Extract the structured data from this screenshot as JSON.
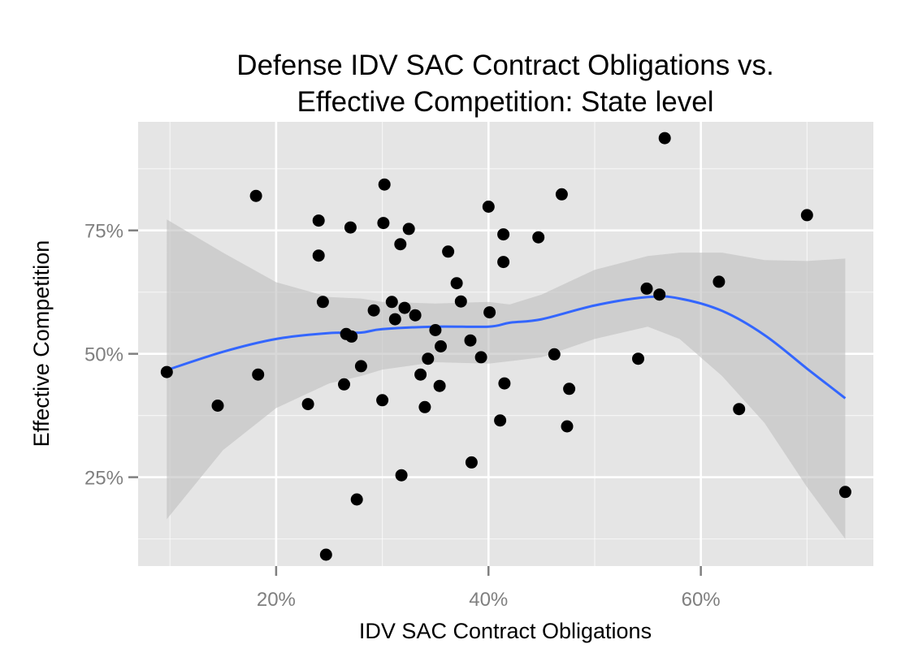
{
  "chart_data": {
    "type": "scatter",
    "title_lines": [
      "Defense IDV SAC Contract Obligations vs.",
      "Effective Competition: State level"
    ],
    "xlabel": "IDV SAC Contract Obligations",
    "ylabel": "Effective Competition",
    "xlim": [
      0.07,
      0.7625
    ],
    "ylim": [
      0.07,
      0.97
    ],
    "x_ticks": [
      {
        "value": 0.2,
        "label": "20%"
      },
      {
        "value": 0.4,
        "label": "40%"
      },
      {
        "value": 0.6,
        "label": "60%"
      }
    ],
    "x_minor": [
      0.1,
      0.3,
      0.5,
      0.7
    ],
    "y_ticks": [
      {
        "value": 0.25,
        "label": "25%"
      },
      {
        "value": 0.5,
        "label": "50%"
      },
      {
        "value": 0.75,
        "label": "75%"
      }
    ],
    "y_minor": [
      0.125,
      0.375,
      0.625,
      0.875
    ],
    "grid": true,
    "colors": {
      "panel": "#e5e5e5",
      "grid": "#ffffff",
      "points": "#000000",
      "smooth_line": "#3366ff",
      "ribbon": "#bebebe"
    },
    "points": [
      {
        "x": 0.097,
        "y": 0.463
      },
      {
        "x": 0.145,
        "y": 0.395
      },
      {
        "x": 0.181,
        "y": 0.82
      },
      {
        "x": 0.183,
        "y": 0.458
      },
      {
        "x": 0.23,
        "y": 0.398
      },
      {
        "x": 0.24,
        "y": 0.77
      },
      {
        "x": 0.24,
        "y": 0.699
      },
      {
        "x": 0.244,
        "y": 0.605
      },
      {
        "x": 0.247,
        "y": 0.093
      },
      {
        "x": 0.264,
        "y": 0.438
      },
      {
        "x": 0.266,
        "y": 0.54
      },
      {
        "x": 0.27,
        "y": 0.756
      },
      {
        "x": 0.271,
        "y": 0.535
      },
      {
        "x": 0.276,
        "y": 0.205
      },
      {
        "x": 0.28,
        "y": 0.475
      },
      {
        "x": 0.292,
        "y": 0.588
      },
      {
        "x": 0.3,
        "y": 0.406
      },
      {
        "x": 0.301,
        "y": 0.765
      },
      {
        "x": 0.302,
        "y": 0.843
      },
      {
        "x": 0.309,
        "y": 0.605
      },
      {
        "x": 0.312,
        "y": 0.57
      },
      {
        "x": 0.317,
        "y": 0.722
      },
      {
        "x": 0.318,
        "y": 0.254
      },
      {
        "x": 0.321,
        "y": 0.593
      },
      {
        "x": 0.325,
        "y": 0.753
      },
      {
        "x": 0.331,
        "y": 0.578
      },
      {
        "x": 0.336,
        "y": 0.458
      },
      {
        "x": 0.34,
        "y": 0.392
      },
      {
        "x": 0.343,
        "y": 0.49
      },
      {
        "x": 0.35,
        "y": 0.548
      },
      {
        "x": 0.354,
        "y": 0.435
      },
      {
        "x": 0.355,
        "y": 0.515
      },
      {
        "x": 0.362,
        "y": 0.707
      },
      {
        "x": 0.37,
        "y": 0.643
      },
      {
        "x": 0.374,
        "y": 0.606
      },
      {
        "x": 0.383,
        "y": 0.527
      },
      {
        "x": 0.384,
        "y": 0.28
      },
      {
        "x": 0.393,
        "y": 0.493
      },
      {
        "x": 0.4,
        "y": 0.798
      },
      {
        "x": 0.401,
        "y": 0.584
      },
      {
        "x": 0.411,
        "y": 0.365
      },
      {
        "x": 0.414,
        "y": 0.742
      },
      {
        "x": 0.414,
        "y": 0.686
      },
      {
        "x": 0.415,
        "y": 0.44
      },
      {
        "x": 0.447,
        "y": 0.736
      },
      {
        "x": 0.462,
        "y": 0.499
      },
      {
        "x": 0.469,
        "y": 0.823
      },
      {
        "x": 0.474,
        "y": 0.353
      },
      {
        "x": 0.476,
        "y": 0.429
      },
      {
        "x": 0.541,
        "y": 0.49
      },
      {
        "x": 0.549,
        "y": 0.632
      },
      {
        "x": 0.561,
        "y": 0.62
      },
      {
        "x": 0.566,
        "y": 0.937
      },
      {
        "x": 0.617,
        "y": 0.646
      },
      {
        "x": 0.636,
        "y": 0.388
      },
      {
        "x": 0.7,
        "y": 0.781
      },
      {
        "x": 0.736,
        "y": 0.22
      }
    ],
    "smooth": {
      "x": [
        0.097,
        0.15,
        0.2,
        0.25,
        0.28,
        0.3,
        0.35,
        0.4,
        0.42,
        0.45,
        0.5,
        0.55,
        0.58,
        0.62,
        0.66,
        0.7,
        0.736
      ],
      "y": [
        0.467,
        0.504,
        0.53,
        0.542,
        0.543,
        0.55,
        0.555,
        0.555,
        0.563,
        0.57,
        0.598,
        0.615,
        0.612,
        0.587,
        0.538,
        0.47,
        0.41
      ],
      "lower": [
        0.165,
        0.305,
        0.39,
        0.44,
        0.455,
        0.468,
        0.483,
        0.48,
        0.485,
        0.493,
        0.53,
        0.555,
        0.53,
        0.455,
        0.36,
        0.23,
        0.125
      ],
      "upper": [
        0.772,
        0.705,
        0.645,
        0.615,
        0.612,
        0.605,
        0.602,
        0.605,
        0.6,
        0.62,
        0.67,
        0.698,
        0.705,
        0.705,
        0.69,
        0.688,
        0.693
      ]
    }
  }
}
